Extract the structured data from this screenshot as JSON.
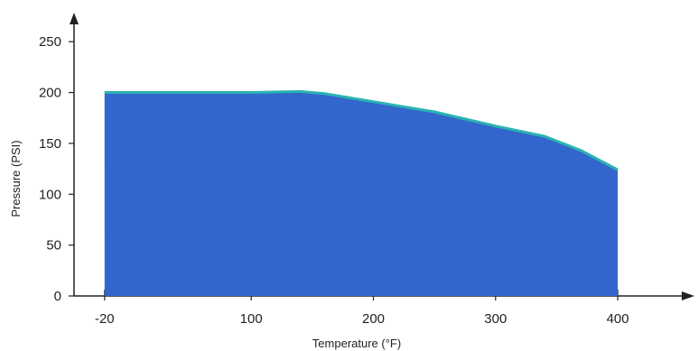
{
  "chart_data": {
    "type": "area",
    "title": "",
    "xlabel": "Temperature (°F)",
    "ylabel": "Pressure (PSI)",
    "x_ticks": [
      {
        "value": -20,
        "label": "-20"
      },
      {
        "value": 100,
        "label": "100"
      },
      {
        "value": 200,
        "label": "200"
      },
      {
        "value": 300,
        "label": "300"
      },
      {
        "value": 400,
        "label": "400"
      }
    ],
    "y_ticks": [
      {
        "value": 0,
        "label": "0"
      },
      {
        "value": 50,
        "label": "50"
      },
      {
        "value": 100,
        "label": "100"
      },
      {
        "value": 150,
        "label": "150"
      },
      {
        "value": 200,
        "label": "200"
      },
      {
        "value": 250,
        "label": "250"
      }
    ],
    "xlim": [
      -45,
      445
    ],
    "ylim": [
      0,
      275
    ],
    "x_minor_step": 25,
    "grid": false,
    "series": [
      {
        "x": [
          -20,
          0,
          50,
          100,
          140,
          160,
          200,
          250,
          300,
          340,
          370,
          400
        ],
        "y": [
          200,
          200,
          200,
          200,
          201,
          199,
          191,
          181,
          167,
          157,
          143,
          124
        ]
      }
    ],
    "colors": {
      "fill": "#3366cc",
      "line": "#2ab3b0",
      "axis": "#222222"
    }
  }
}
